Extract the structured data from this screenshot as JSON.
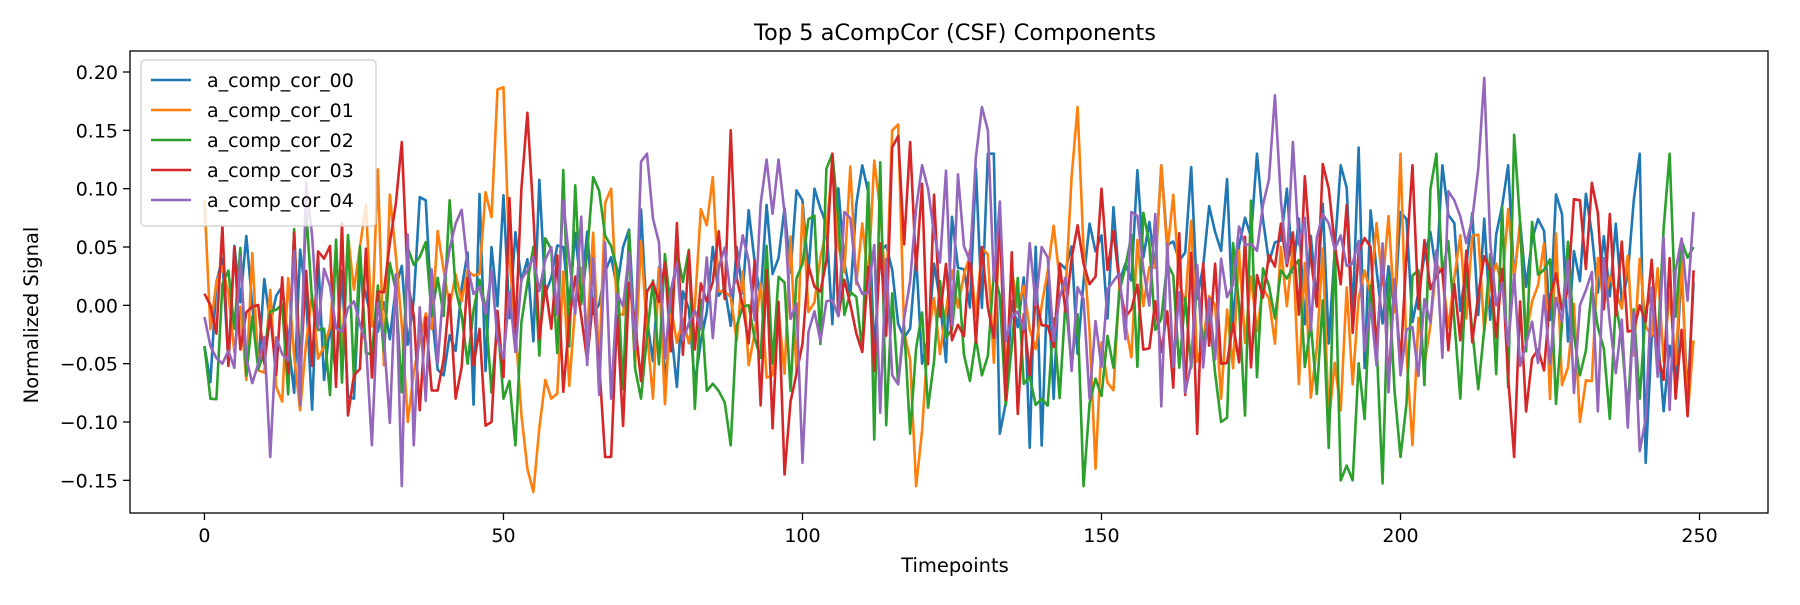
{
  "chart_data": {
    "type": "line",
    "title": "Top 5 aCompCor (CSF) Components",
    "xlabel": "Timepoints",
    "ylabel": "Normalized Signal",
    "xlim": [
      -12.45,
      261.45
    ],
    "ylim": [
      -0.178,
      0.218
    ],
    "xticks": [
      0,
      50,
      100,
      150,
      200,
      250
    ],
    "yticks": [
      -0.15,
      -0.1,
      -0.05,
      0.0,
      0.05,
      0.1,
      0.15,
      0.2
    ],
    "xtick_labels": [
      "0",
      "50",
      "100",
      "150",
      "200",
      "250"
    ],
    "ytick_labels": [
      "−0.15",
      "−0.10",
      "−0.05",
      "0.00",
      "0.05",
      "0.10",
      "0.15",
      "0.20"
    ],
    "grid": false,
    "legend": "top-left",
    "n_points": 250,
    "series": [
      {
        "name": "a_comp_cor_00",
        "color": "#1f77b4",
        "anchors": [
          [
            0,
            -0.035
          ],
          [
            2,
            0.02
          ],
          [
            3,
            0.04
          ],
          [
            8,
            0.0
          ],
          [
            14,
            -0.03
          ],
          [
            22,
            -0.06
          ],
          [
            25,
            -0.08
          ],
          [
            37,
            0.09
          ],
          [
            40,
            -0.06
          ],
          [
            48,
            0.05
          ],
          [
            60,
            0.05
          ],
          [
            70,
            0.05
          ],
          [
            79,
            -0.07
          ],
          [
            89,
            0.05
          ],
          [
            100,
            0.09
          ],
          [
            102,
            0.1
          ],
          [
            110,
            0.12
          ],
          [
            120,
            -0.05
          ],
          [
            131,
            0.13
          ],
          [
            132,
            0.13
          ],
          [
            133,
            -0.11
          ],
          [
            150,
            0.06
          ],
          [
            160,
            0.12
          ],
          [
            176,
            0.13
          ],
          [
            181,
            0.1
          ],
          [
            190,
            0.12
          ],
          [
            200,
            0.08
          ],
          [
            207,
            0.12
          ],
          [
            218,
            0.12
          ],
          [
            236,
            0.07
          ],
          [
            240,
            0.13
          ],
          [
            241,
            -0.135
          ],
          [
            248,
            -0.08
          ],
          [
            249,
            0.02
          ]
        ],
        "amplitude": 0.065
      },
      {
        "name": "a_comp_cor_01",
        "color": "#ff7f0e",
        "anchors": [
          [
            0,
            0.09
          ],
          [
            5,
            -0.04
          ],
          [
            12,
            -0.07
          ],
          [
            16,
            -0.09
          ],
          [
            26,
            0.05
          ],
          [
            31,
            0.095
          ],
          [
            34,
            -0.1
          ],
          [
            40,
            0.03
          ],
          [
            49,
            0.185
          ],
          [
            50,
            0.187
          ],
          [
            52,
            -0.02
          ],
          [
            54,
            -0.14
          ],
          [
            55,
            -0.16
          ],
          [
            58,
            -0.08
          ],
          [
            68,
            0.1
          ],
          [
            75,
            -0.08
          ],
          [
            85,
            0.11
          ],
          [
            95,
            -0.06
          ],
          [
            105,
            0.12
          ],
          [
            115,
            0.15
          ],
          [
            116,
            0.155
          ],
          [
            119,
            -0.155
          ],
          [
            125,
            0.03
          ],
          [
            135,
            0.03
          ],
          [
            140,
            0.0
          ],
          [
            146,
            0.17
          ],
          [
            149,
            -0.14
          ],
          [
            160,
            0.12
          ],
          [
            170,
            -0.08
          ],
          [
            180,
            0.05
          ],
          [
            190,
            -0.09
          ],
          [
            200,
            0.13
          ],
          [
            202,
            -0.12
          ],
          [
            210,
            0.06
          ],
          [
            220,
            0.07
          ],
          [
            230,
            -0.1
          ],
          [
            240,
            0.04
          ],
          [
            249,
            -0.03
          ]
        ],
        "amplitude": 0.06
      },
      {
        "name": "a_comp_cor_02",
        "color": "#2ca02c",
        "anchors": [
          [
            0,
            -0.035
          ],
          [
            1,
            -0.08
          ],
          [
            5,
            -0.02
          ],
          [
            10,
            -0.04
          ],
          [
            20,
            -0.02
          ],
          [
            30,
            -0.04
          ],
          [
            41,
            0.09
          ],
          [
            44,
            -0.05
          ],
          [
            50,
            -0.08
          ],
          [
            52,
            -0.12
          ],
          [
            55,
            0.05
          ],
          [
            65,
            0.11
          ],
          [
            73,
            -0.08
          ],
          [
            80,
            0.02
          ],
          [
            88,
            -0.12
          ],
          [
            95,
            -0.05
          ],
          [
            105,
            0.13
          ],
          [
            118,
            -0.11
          ],
          [
            130,
            -0.06
          ],
          [
            140,
            -0.08
          ],
          [
            147,
            -0.155
          ],
          [
            155,
            0.06
          ],
          [
            170,
            -0.1
          ],
          [
            180,
            0.03
          ],
          [
            190,
            -0.15
          ],
          [
            192,
            -0.15
          ],
          [
            200,
            -0.13
          ],
          [
            206,
            0.13
          ],
          [
            210,
            -0.08
          ],
          [
            220,
            0.07
          ],
          [
            230,
            -0.06
          ],
          [
            240,
            -0.08
          ],
          [
            245,
            0.13
          ],
          [
            249,
            0.05
          ]
        ],
        "amplitude": 0.075
      },
      {
        "name": "a_comp_cor_03",
        "color": "#d62728",
        "anchors": [
          [
            0,
            0.01
          ],
          [
            1,
            0.0
          ],
          [
            5,
            0.05
          ],
          [
            10,
            -0.05
          ],
          [
            20,
            0.04
          ],
          [
            25,
            -0.06
          ],
          [
            33,
            0.14
          ],
          [
            34,
            0.02
          ],
          [
            36,
            -0.09
          ],
          [
            42,
            -0.08
          ],
          [
            48,
            -0.1
          ],
          [
            53,
            0.1
          ],
          [
            54,
            0.165
          ],
          [
            58,
            -0.02
          ],
          [
            66,
            -0.05
          ],
          [
            67,
            -0.13
          ],
          [
            68,
            -0.13
          ],
          [
            75,
            0.02
          ],
          [
            85,
            0.02
          ],
          [
            88,
            0.15
          ],
          [
            90,
            0.0
          ],
          [
            97,
            -0.145
          ],
          [
            105,
            0.13
          ],
          [
            110,
            -0.04
          ],
          [
            116,
            0.145
          ],
          [
            118,
            0.14
          ],
          [
            125,
            -0.03
          ],
          [
            130,
            0.05
          ],
          [
            138,
            -0.06
          ],
          [
            145,
            0.04
          ],
          [
            150,
            0.1
          ],
          [
            160,
            -0.04
          ],
          [
            170,
            -0.05
          ],
          [
            180,
            0.07
          ],
          [
            188,
            0.1
          ],
          [
            195,
            0.05
          ],
          [
            200,
            -0.05
          ],
          [
            202,
            0.12
          ],
          [
            210,
            -0.03
          ],
          [
            215,
            0.03
          ],
          [
            219,
            -0.13
          ],
          [
            230,
            0.09
          ],
          [
            232,
            0.105
          ],
          [
            240,
            0.0
          ],
          [
            246,
            -0.08
          ],
          [
            248,
            -0.095
          ],
          [
            249,
            0.03
          ]
        ],
        "amplitude": 0.055
      },
      {
        "name": "a_comp_cor_04",
        "color": "#9467bd",
        "anchors": [
          [
            0,
            -0.01
          ],
          [
            3,
            -0.05
          ],
          [
            9,
            -0.05
          ],
          [
            11,
            -0.13
          ],
          [
            18,
            0.06
          ],
          [
            28,
            -0.12
          ],
          [
            35,
            -0.12
          ],
          [
            42,
            0.07
          ],
          [
            52,
            -0.04
          ],
          [
            60,
            0.09
          ],
          [
            68,
            -0.08
          ],
          [
            74,
            0.13
          ],
          [
            80,
            -0.03
          ],
          [
            90,
            0.06
          ],
          [
            94,
            0.125
          ],
          [
            96,
            0.125
          ],
          [
            100,
            -0.135
          ],
          [
            107,
            0.08
          ],
          [
            115,
            -0.06
          ],
          [
            120,
            0.12
          ],
          [
            130,
            0.17
          ],
          [
            131,
            0.15
          ],
          [
            135,
            -0.01
          ],
          [
            140,
            0.05
          ],
          [
            148,
            -0.08
          ],
          [
            155,
            0.08
          ],
          [
            165,
            -0.05
          ],
          [
            170,
            0.04
          ],
          [
            179,
            0.18
          ],
          [
            182,
            0.14
          ],
          [
            190,
            0.06
          ],
          [
            200,
            -0.06
          ],
          [
            209,
            0.09
          ],
          [
            214,
            0.195
          ],
          [
            216,
            0.0
          ],
          [
            225,
            -0.05
          ],
          [
            230,
            0.0
          ],
          [
            240,
            -0.125
          ],
          [
            246,
            0.03
          ],
          [
            249,
            0.08
          ]
        ],
        "amplitude": 0.06
      }
    ]
  }
}
